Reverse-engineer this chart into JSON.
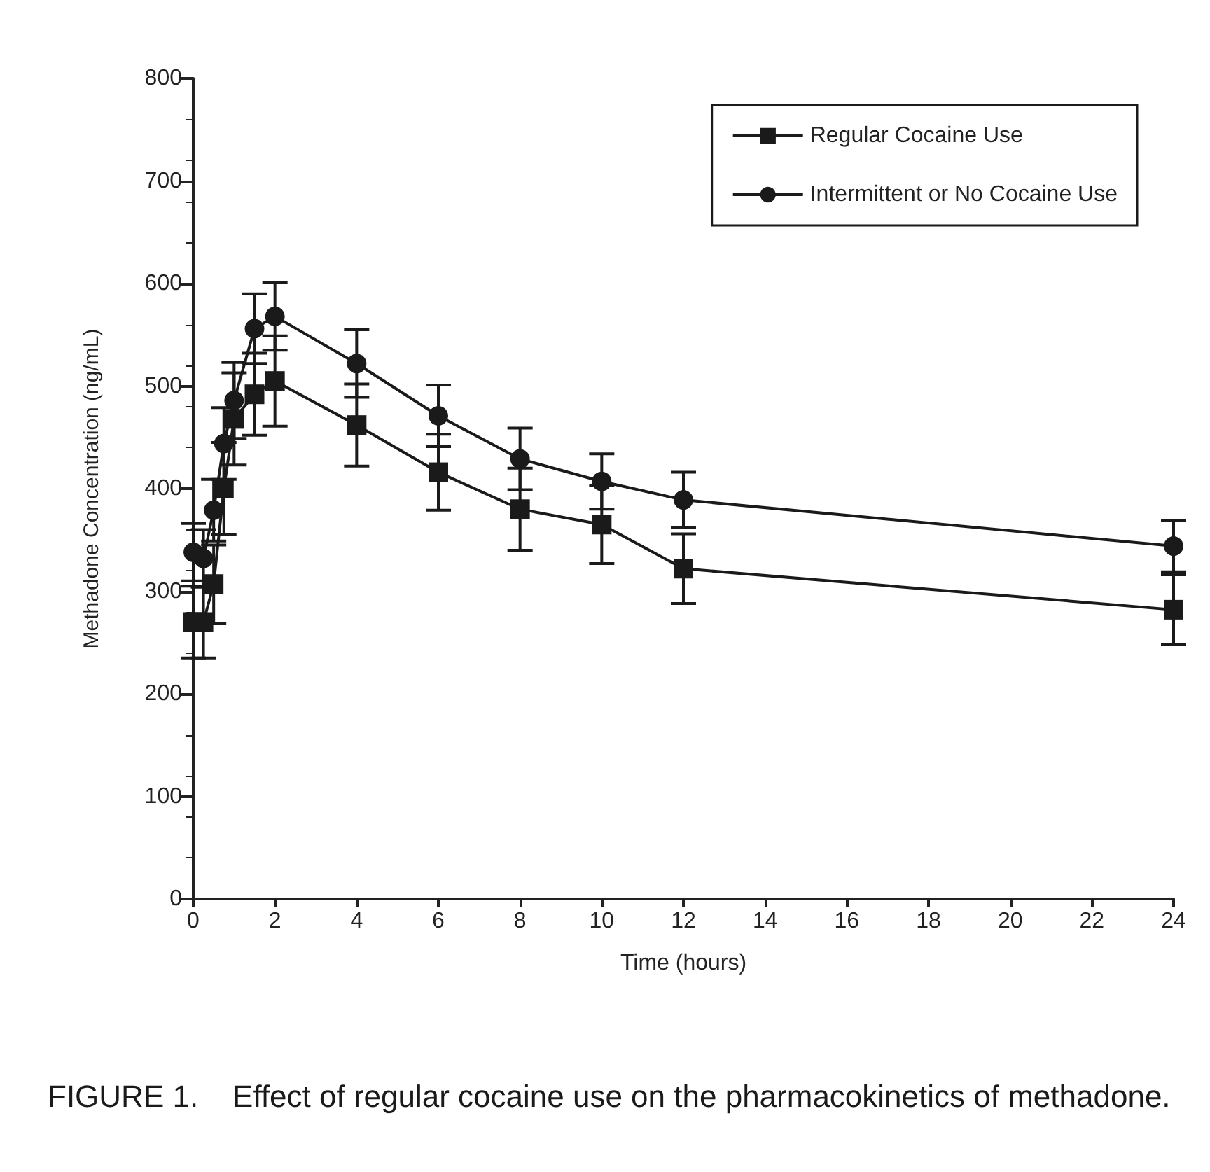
{
  "chart_data": {
    "type": "line",
    "xlabel": "Time (hours)",
    "ylabel": "Methadone Concentration (ng/mL)",
    "x": [
      0,
      0.25,
      0.5,
      0.75,
      1,
      1.5,
      2,
      4,
      6,
      8,
      10,
      12,
      24
    ],
    "series": [
      {
        "name": "Regular Cocaine Use",
        "color": "#1a1a1a",
        "marker": "square",
        "values": [
          270,
          270,
          307,
          400,
          468,
          492,
          505,
          462,
          416,
          380,
          365,
          322,
          282
        ],
        "errors": [
          35,
          35,
          38,
          45,
          45,
          40,
          44,
          40,
          37,
          40,
          38,
          34,
          34
        ]
      },
      {
        "name": "Intermittent or No Cocaine Use",
        "color": "#1a1a1a",
        "marker": "circle",
        "values": [
          338,
          332,
          379,
          444,
          486,
          556,
          568,
          522,
          471,
          429,
          407,
          389,
          344
        ],
        "errors": [
          28,
          28,
          30,
          35,
          37,
          34,
          33,
          33,
          30,
          30,
          27,
          27,
          25
        ]
      }
    ],
    "xlim": [
      0,
      24
    ],
    "xticks": [
      0,
      2,
      4,
      6,
      8,
      10,
      12,
      14,
      16,
      18,
      20,
      22,
      24
    ],
    "ylim": [
      0,
      800
    ],
    "yticks": [
      0,
      100,
      200,
      300,
      400,
      500,
      600,
      700,
      800
    ],
    "grid": false,
    "legend": "top right",
    "line_style": "solid",
    "annotations": [
      "FIGURE 1.    Effect of regular cocaine use on the pharmacokinetics of methadone."
    ]
  }
}
